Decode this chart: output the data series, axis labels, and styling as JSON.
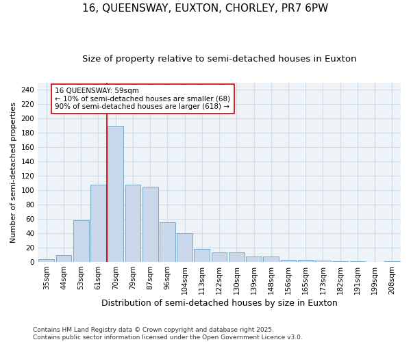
{
  "title": "16, QUEENSWAY, EUXTON, CHORLEY, PR7 6PW",
  "subtitle": "Size of property relative to semi-detached houses in Euxton",
  "xlabel": "Distribution of semi-detached houses by size in Euxton",
  "ylabel": "Number of semi-detached properties",
  "categories": [
    "35sqm",
    "44sqm",
    "53sqm",
    "61sqm",
    "70sqm",
    "79sqm",
    "87sqm",
    "96sqm",
    "104sqm",
    "113sqm",
    "122sqm",
    "130sqm",
    "139sqm",
    "148sqm",
    "156sqm",
    "165sqm",
    "173sqm",
    "182sqm",
    "191sqm",
    "199sqm",
    "208sqm"
  ],
  "values": [
    4,
    10,
    58,
    108,
    190,
    108,
    105,
    55,
    40,
    18,
    13,
    13,
    8,
    8,
    3,
    3,
    2,
    1,
    1,
    0,
    1
  ],
  "bar_color": "#c8d8ea",
  "bar_edge_color": "#7aaac8",
  "red_line_x": 3.5,
  "annotation_text": "16 QUEENSWAY: 59sqm\n← 10% of semi-detached houses are smaller (68)\n90% of semi-detached houses are larger (618) →",
  "annotation_box_color": "white",
  "annotation_box_edge_color": "#cc0000",
  "ylim": [
    0,
    250
  ],
  "yticks": [
    0,
    20,
    40,
    60,
    80,
    100,
    120,
    140,
    160,
    180,
    200,
    220,
    240
  ],
  "background_color": "#eef3f8",
  "grid_color": "#d0dce8",
  "footer": "Contains HM Land Registry data © Crown copyright and database right 2025.\nContains public sector information licensed under the Open Government Licence v3.0.",
  "title_fontsize": 11,
  "subtitle_fontsize": 9.5,
  "xlabel_fontsize": 9,
  "ylabel_fontsize": 8,
  "tick_fontsize": 7.5,
  "annotation_fontsize": 7.5,
  "footer_fontsize": 6.5
}
